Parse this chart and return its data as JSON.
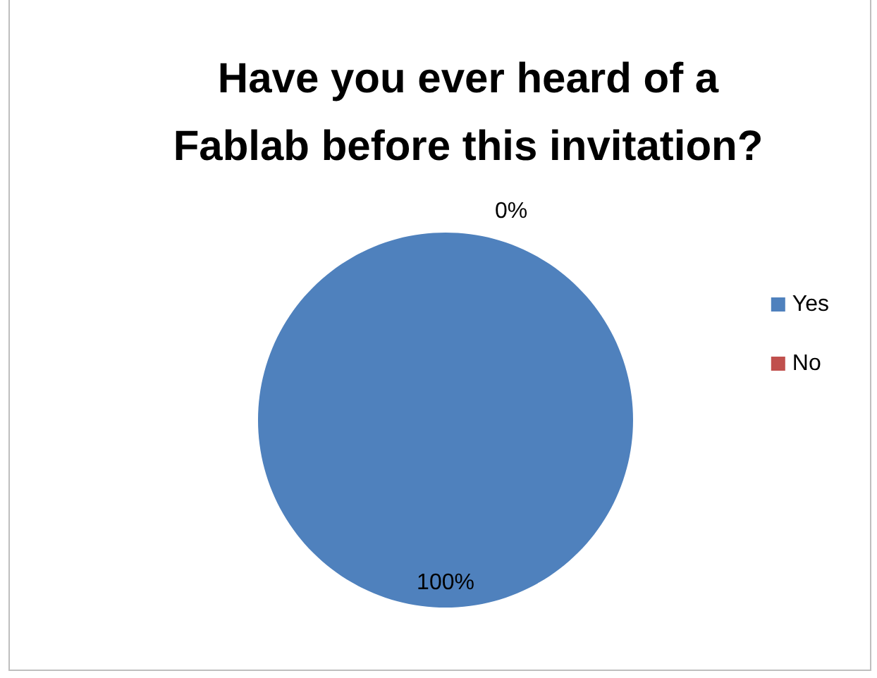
{
  "chart_data": {
    "type": "pie",
    "title": "Have you ever heard of a\nFablab before this invitation?",
    "categories": [
      "Yes",
      "No"
    ],
    "values": [
      100,
      0
    ],
    "value_labels": [
      "100%",
      "0%"
    ],
    "colors": [
      "#4f81bd",
      "#c0504d"
    ],
    "legend": "right"
  }
}
